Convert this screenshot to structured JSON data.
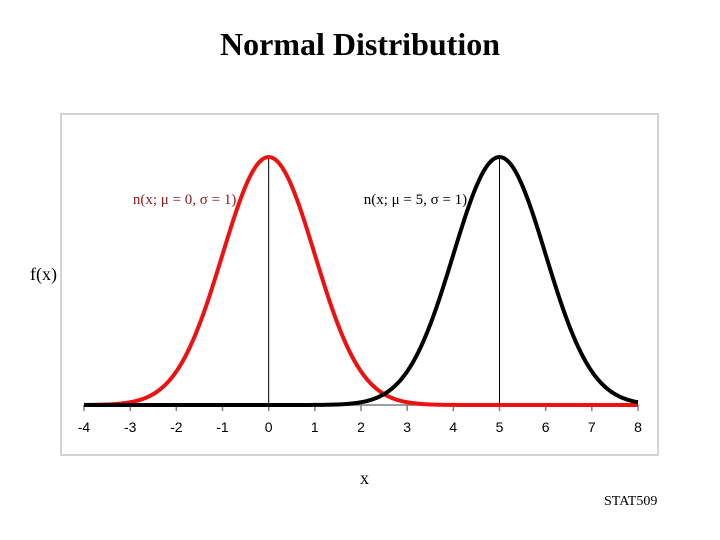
{
  "page": {
    "title": "Normal Distribution",
    "footer": "STAT509"
  },
  "chart_data": {
    "type": "line",
    "title": "Normal Distribution",
    "xlabel": "x",
    "ylabel": "f(x)",
    "xlim": [
      -4,
      8
    ],
    "x_ticks": [
      -4,
      -3,
      -2,
      -1,
      0,
      1,
      2,
      3,
      4,
      5,
      6,
      7,
      8
    ],
    "grid": false,
    "series": [
      {
        "name": "n(x; μ = 0, σ = 1)",
        "mu": 0,
        "sigma": 1,
        "color": "#ee1111",
        "label_color": "#8b1a1a",
        "x": [
          -4,
          -3.5,
          -3,
          -2.5,
          -2,
          -1.5,
          -1,
          -0.5,
          0,
          0.5,
          1,
          1.5,
          2,
          2.5,
          3,
          3.5,
          4,
          4.5,
          5,
          5.5,
          6,
          6.5,
          7,
          7.5,
          8
        ],
        "values": [
          0.0001,
          0.0009,
          0.0044,
          0.0175,
          0.054,
          0.1295,
          0.242,
          0.3521,
          0.3989,
          0.3521,
          0.242,
          0.1295,
          0.054,
          0.0175,
          0.0044,
          0.0009,
          0.0001,
          0,
          0,
          0,
          0,
          0,
          0,
          0,
          0
        ]
      },
      {
        "name": "n(x; μ = 5, σ = 1)",
        "mu": 5,
        "sigma": 1,
        "color": "#000000",
        "label_color": "#000000",
        "x": [
          -4,
          -3.5,
          -3,
          -2.5,
          -2,
          -1.5,
          -1,
          -0.5,
          0,
          0.5,
          1,
          1.5,
          2,
          2.5,
          3,
          3.5,
          4,
          4.5,
          5,
          5.5,
          6,
          6.5,
          7,
          7.5,
          8
        ],
        "values": [
          0,
          0,
          0,
          0,
          0,
          0,
          0,
          0,
          0,
          0,
          0.0001,
          0.0009,
          0.0044,
          0.0175,
          0.054,
          0.1295,
          0.242,
          0.3521,
          0.3989,
          0.3521,
          0.242,
          0.1295,
          0.054,
          0.0175,
          0.0044
        ]
      }
    ],
    "annotations": [
      {
        "text": "n(x; μ = 0, σ = 1)",
        "series": 0
      },
      {
        "text": "n(x; μ = 5, σ = 1)",
        "series": 1
      }
    ]
  }
}
